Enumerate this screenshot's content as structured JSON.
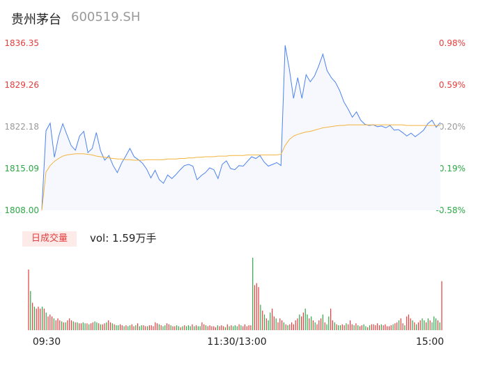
{
  "header": {
    "name": "贵州茅台",
    "code": "600519.SH"
  },
  "volume_tag": "日成交量",
  "volume_text": "vol: 1.59万手",
  "colors": {
    "price": "#4c82f0",
    "avg": "#f3b33d",
    "up": "#e43c3c",
    "down": "#2ca845",
    "fill": "#f6f8fd"
  },
  "chart_data": [
    {
      "type": "line",
      "y_ticks_left": [
        "1836.35",
        "1829.26",
        "1822.18",
        "1815.09",
        "1808.00"
      ],
      "y_ticks_right": [
        "0.98%",
        "0.59%",
        "0.20%",
        "-0.19%",
        "-0.58%"
      ],
      "x_ticks": [
        "09:30",
        "11:30/13:00",
        "15:00"
      ],
      "ylim": [
        1808.0,
        1836.35
      ],
      "series": [
        {
          "values": [
            1808.2,
            1821.5,
            1822.8,
            1817.0,
            1820.5,
            1822.7,
            1820.8,
            1819.0,
            1818.2,
            1820.6,
            1821.4,
            1817.8,
            1818.5,
            1821.2,
            1818.1,
            1816.5,
            1817.3,
            1815.6,
            1814.4,
            1816.0,
            1817.2,
            1818.5,
            1817.1,
            1816.6,
            1816.0,
            1815.0,
            1813.5,
            1814.8,
            1813.2,
            1812.6,
            1814.0,
            1813.4,
            1814.1,
            1814.9,
            1815.6,
            1815.8,
            1815.5,
            1813.2,
            1813.9,
            1814.4,
            1815.2,
            1814.9,
            1813.4,
            1815.8,
            1816.4,
            1815.1,
            1814.9,
            1815.6,
            1815.5,
            1816.3,
            1817.1,
            1816.8,
            1817.3,
            1816.2,
            1815.5,
            1815.8,
            1816.1,
            1815.6,
            1836.0,
            1832.0,
            1827.0,
            1830.5,
            1827.0,
            1831.0,
            1829.8,
            1830.8,
            1832.5,
            1834.5,
            1831.7,
            1830.5,
            1829.7,
            1828.3,
            1826.4,
            1825.2,
            1823.8,
            1824.7,
            1823.3,
            1822.6,
            1822.4,
            1822.5,
            1822.2,
            1822.3,
            1822.0,
            1822.4,
            1821.6,
            1821.7,
            1821.2,
            1820.6,
            1821.1,
            1820.5,
            1821.0,
            1821.6,
            1822.7,
            1823.3,
            1822.1,
            1822.9
          ],
          "color": "#4c82f0"
        },
        {
          "values": [
            1808.0,
            1814.5,
            1815.6,
            1816.3,
            1816.8,
            1817.2,
            1817.4,
            1817.5,
            1817.6,
            1817.6,
            1817.6,
            1817.5,
            1817.4,
            1817.2,
            1817.1,
            1817.0,
            1816.9,
            1816.8,
            1816.7,
            1816.7,
            1816.6,
            1816.6,
            1816.5,
            1816.5,
            1816.5,
            1816.6,
            1816.6,
            1816.6,
            1816.6,
            1816.6,
            1816.7,
            1816.7,
            1816.7,
            1816.8,
            1816.8,
            1816.9,
            1816.9,
            1817.0,
            1817.0,
            1817.1,
            1817.1,
            1817.1,
            1817.2,
            1817.2,
            1817.2,
            1817.3,
            1817.3,
            1817.3,
            1817.3,
            1817.4,
            1817.4,
            1817.4,
            1817.4,
            1817.4,
            1817.4,
            1817.4,
            1817.4,
            1817.5,
            1819.0,
            1820.0,
            1820.6,
            1820.9,
            1821.1,
            1821.3,
            1821.4,
            1821.6,
            1821.8,
            1822.0,
            1822.1,
            1822.2,
            1822.3,
            1822.4,
            1822.4,
            1822.5,
            1822.5,
            1822.5,
            1822.5,
            1822.5,
            1822.5,
            1822.5,
            1822.5,
            1822.5,
            1822.5,
            1822.5,
            1822.5,
            1822.5,
            1822.5,
            1822.4,
            1822.4,
            1822.4,
            1822.4,
            1822.4,
            1822.4,
            1822.4,
            1822.4,
            1822.4
          ],
          "color": "#f3b33d"
        }
      ]
    },
    {
      "type": "bar",
      "values": [
        62,
        40,
        28,
        24,
        22,
        24,
        22,
        24,
        22,
        18,
        14,
        16,
        14,
        12,
        10,
        12,
        10,
        9,
        8,
        8,
        10,
        12,
        10,
        9,
        8,
        8,
        7,
        7,
        8,
        7,
        7,
        6,
        7,
        8,
        9,
        8,
        7,
        6,
        6,
        7,
        8,
        10,
        8,
        7,
        6,
        5,
        5,
        6,
        5,
        4,
        5,
        4,
        5,
        6,
        4,
        5,
        7,
        4,
        5,
        5,
        4,
        4,
        5,
        5,
        4,
        8,
        7,
        6,
        5,
        4,
        5,
        7,
        6,
        5,
        4,
        4,
        5,
        4,
        3,
        4,
        5,
        4,
        5,
        4,
        6,
        4,
        5,
        4,
        4,
        8,
        6,
        5,
        4,
        5,
        4,
        4,
        3,
        5,
        4,
        5,
        4,
        3,
        6,
        4,
        5,
        4,
        5,
        4,
        6,
        5,
        4,
        6,
        4,
        5,
        5,
        74,
        46,
        48,
        44,
        26,
        20,
        16,
        12,
        10,
        18,
        22,
        14,
        12,
        8,
        12,
        10,
        8,
        6,
        5,
        6,
        8,
        6,
        10,
        12,
        16,
        14,
        18,
        22,
        16,
        12,
        14,
        10,
        8,
        6,
        10,
        12,
        16,
        8,
        6,
        14,
        22,
        10,
        8,
        6,
        5,
        5,
        6,
        5,
        7,
        6,
        10,
        6,
        5,
        7,
        5,
        4,
        5,
        6,
        4,
        3,
        5,
        6,
        6,
        5,
        7,
        5,
        6,
        5,
        6,
        4,
        4,
        5,
        6,
        7,
        8,
        10,
        12,
        7,
        5,
        14,
        16,
        12,
        10,
        8,
        6,
        8,
        10,
        12,
        10,
        8,
        12,
        10,
        8,
        14,
        12,
        10,
        8,
        50
      ],
      "colors": "up_down"
    }
  ]
}
